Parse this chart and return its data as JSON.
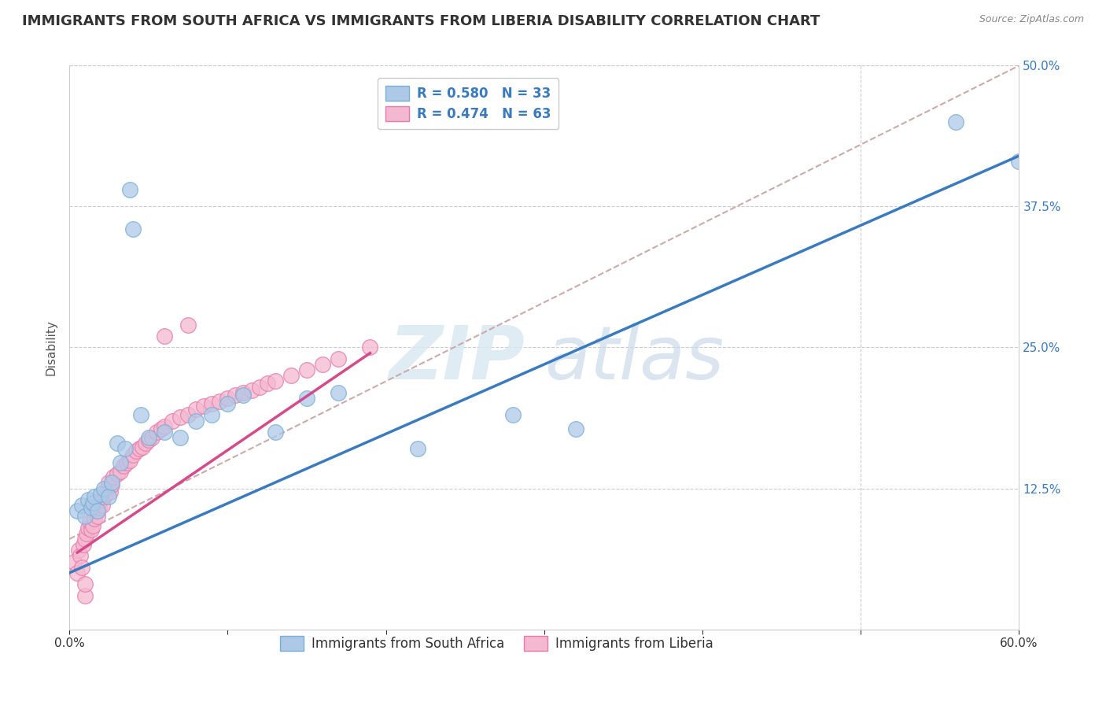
{
  "title": "IMMIGRANTS FROM SOUTH AFRICA VS IMMIGRANTS FROM LIBERIA DISABILITY CORRELATION CHART",
  "source": "Source: ZipAtlas.com",
  "ylabel": "Disability",
  "watermark_line1": "ZIP",
  "watermark_line2": "atlas",
  "xlim": [
    0.0,
    0.6
  ],
  "ylim": [
    0.0,
    0.5
  ],
  "xtick_positions": [
    0.0,
    0.1,
    0.2,
    0.3,
    0.4,
    0.5,
    0.6
  ],
  "xtick_labels": [
    "0.0%",
    "",
    "",
    "",
    "",
    "",
    "60.0%"
  ],
  "ytick_positions": [
    0.0,
    0.125,
    0.25,
    0.375,
    0.5
  ],
  "ytick_labels": [
    "",
    "12.5%",
    "25.0%",
    "37.5%",
    "50.0%"
  ],
  "series1_label": "Immigrants from South Africa",
  "series1_R": 0.58,
  "series1_N": 33,
  "series1_fill_color": "#aec9e8",
  "series1_edge_color": "#7aafd4",
  "series2_label": "Immigrants from Liberia",
  "series2_R": 0.474,
  "series2_N": 63,
  "series2_fill_color": "#f4b8d0",
  "series2_edge_color": "#e87aaa",
  "regression1_color": "#3a7abf",
  "regression2_color": "#d44a8a",
  "dashed_line_color": "#ccaaaa",
  "background_color": "#ffffff",
  "grid_color": "#cccccc",
  "title_fontsize": 13,
  "axis_label_fontsize": 11,
  "tick_fontsize": 11,
  "right_tick_color": "#3a7abf",
  "legend_text_color": "#3a7abf",
  "s1_x": [
    0.005,
    0.008,
    0.01,
    0.012,
    0.014,
    0.015,
    0.016,
    0.018,
    0.02,
    0.022,
    0.025,
    0.027,
    0.03,
    0.032,
    0.035,
    0.038,
    0.04,
    0.045,
    0.05,
    0.06,
    0.07,
    0.08,
    0.09,
    0.1,
    0.11,
    0.13,
    0.15,
    0.17,
    0.22,
    0.28,
    0.32,
    0.56,
    0.6
  ],
  "s1_y": [
    0.105,
    0.11,
    0.1,
    0.115,
    0.108,
    0.112,
    0.118,
    0.105,
    0.12,
    0.125,
    0.118,
    0.13,
    0.165,
    0.148,
    0.16,
    0.39,
    0.355,
    0.19,
    0.17,
    0.175,
    0.17,
    0.185,
    0.19,
    0.2,
    0.208,
    0.175,
    0.205,
    0.21,
    0.16,
    0.19,
    0.178,
    0.45,
    0.415
  ],
  "s2_x": [
    0.003,
    0.005,
    0.006,
    0.007,
    0.008,
    0.009,
    0.01,
    0.011,
    0.012,
    0.013,
    0.014,
    0.015,
    0.016,
    0.017,
    0.018,
    0.019,
    0.02,
    0.021,
    0.022,
    0.023,
    0.024,
    0.025,
    0.026,
    0.027,
    0.028,
    0.03,
    0.032,
    0.034,
    0.036,
    0.038,
    0.04,
    0.042,
    0.044,
    0.046,
    0.048,
    0.05,
    0.052,
    0.055,
    0.058,
    0.06,
    0.065,
    0.07,
    0.075,
    0.08,
    0.085,
    0.09,
    0.095,
    0.1,
    0.105,
    0.11,
    0.115,
    0.12,
    0.125,
    0.13,
    0.14,
    0.15,
    0.16,
    0.17,
    0.19,
    0.01,
    0.06,
    0.075,
    0.01
  ],
  "s2_y": [
    0.06,
    0.05,
    0.07,
    0.065,
    0.055,
    0.075,
    0.08,
    0.085,
    0.09,
    0.095,
    0.088,
    0.092,
    0.098,
    0.105,
    0.1,
    0.108,
    0.115,
    0.11,
    0.118,
    0.12,
    0.125,
    0.13,
    0.122,
    0.128,
    0.135,
    0.138,
    0.14,
    0.145,
    0.148,
    0.15,
    0.155,
    0.158,
    0.16,
    0.162,
    0.165,
    0.168,
    0.17,
    0.175,
    0.178,
    0.18,
    0.185,
    0.188,
    0.19,
    0.195,
    0.198,
    0.2,
    0.202,
    0.205,
    0.208,
    0.21,
    0.212,
    0.215,
    0.218,
    0.22,
    0.225,
    0.23,
    0.235,
    0.24,
    0.25,
    0.03,
    0.26,
    0.27,
    0.04
  ],
  "blue_line_x": [
    0.0,
    0.6
  ],
  "blue_line_y": [
    0.05,
    0.42
  ],
  "pink_line_x": [
    0.005,
    0.19
  ],
  "pink_line_y": [
    0.068,
    0.245
  ],
  "dashed_line_x": [
    0.0,
    0.6
  ],
  "dashed_line_y": [
    0.08,
    0.5
  ]
}
